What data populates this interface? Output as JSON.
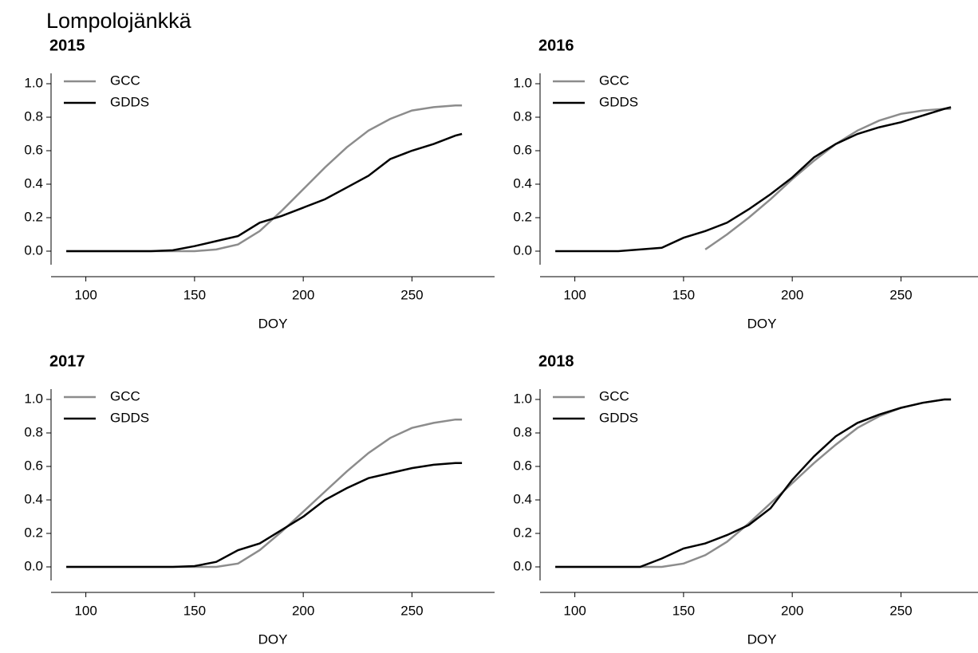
{
  "title": "Lompolojänkkä",
  "chart_data": [
    {
      "type": "line",
      "title": "2015",
      "x_label": "DOY",
      "x": [
        91,
        100,
        110,
        120,
        130,
        140,
        150,
        160,
        170,
        180,
        190,
        200,
        210,
        220,
        230,
        240,
        250,
        260,
        270,
        273
      ],
      "series": [
        {
          "name": "GCC",
          "color": "#8c8c8c",
          "values": [
            0,
            0,
            0,
            0,
            0,
            0,
            0,
            0.01,
            0.04,
            0.12,
            0.24,
            0.37,
            0.5,
            0.62,
            0.72,
            0.79,
            0.84,
            0.86,
            0.87,
            0.87
          ]
        },
        {
          "name": "GDDS",
          "color": "#000000",
          "values": [
            0,
            0,
            0,
            0,
            0,
            0.005,
            0.03,
            0.06,
            0.09,
            0.17,
            0.21,
            0.26,
            0.31,
            0.38,
            0.45,
            0.55,
            0.6,
            0.64,
            0.69,
            0.7
          ]
        }
      ],
      "xlim": [
        84,
        288
      ],
      "xticks": [
        100,
        150,
        200,
        250
      ],
      "ylim": [
        -0.1,
        1.1
      ],
      "yticks": [
        {
          "value": 0,
          "label": "0.0"
        },
        0.2,
        0.4,
        0.6,
        0.8,
        {
          "value": 1,
          "label": "1.0"
        }
      ],
      "grid": false,
      "legend": "upper left"
    },
    {
      "type": "line",
      "title": "2016",
      "x_label": "DOY",
      "x": [
        91,
        100,
        110,
        120,
        130,
        140,
        150,
        160,
        170,
        180,
        190,
        200,
        210,
        220,
        230,
        240,
        250,
        260,
        270,
        273
      ],
      "series": [
        {
          "name": "GCC",
          "color": "#8c8c8c",
          "values": [
            null,
            null,
            null,
            null,
            null,
            null,
            null,
            0.01,
            0.1,
            0.2,
            0.31,
            0.43,
            0.54,
            0.64,
            0.72,
            0.78,
            0.82,
            0.84,
            0.85,
            0.85
          ]
        },
        {
          "name": "GDDS",
          "color": "#000000",
          "values": [
            0,
            0,
            0,
            0,
            0.01,
            0.02,
            0.08,
            0.12,
            0.17,
            0.25,
            0.34,
            0.44,
            0.56,
            0.64,
            0.7,
            0.74,
            0.77,
            0.81,
            0.85,
            0.86
          ]
        }
      ],
      "xlim": [
        84,
        288
      ],
      "xticks": [
        100,
        150,
        200,
        250
      ],
      "ylim": [
        -0.1,
        1.1
      ],
      "yticks": [
        {
          "value": 0,
          "label": "0.0"
        },
        0.2,
        0.4,
        0.6,
        0.8,
        {
          "value": 1,
          "label": "1.0"
        }
      ],
      "grid": false,
      "legend": "upper left"
    },
    {
      "type": "line",
      "title": "2017",
      "x_label": "DOY",
      "x": [
        91,
        100,
        110,
        120,
        130,
        140,
        150,
        160,
        170,
        180,
        190,
        200,
        210,
        220,
        230,
        240,
        250,
        260,
        270,
        273
      ],
      "series": [
        {
          "name": "GCC",
          "color": "#8c8c8c",
          "values": [
            0,
            0,
            0,
            0,
            0,
            0,
            0,
            0,
            0.02,
            0.1,
            0.21,
            0.33,
            0.45,
            0.57,
            0.68,
            0.77,
            0.83,
            0.86,
            0.88,
            0.88
          ]
        },
        {
          "name": "GDDS",
          "color": "#000000",
          "values": [
            0,
            0,
            0,
            0,
            0,
            0,
            0.005,
            0.03,
            0.1,
            0.14,
            0.22,
            0.3,
            0.4,
            0.47,
            0.53,
            0.56,
            0.59,
            0.61,
            0.62,
            0.62
          ]
        }
      ],
      "xlim": [
        84,
        288
      ],
      "xticks": [
        100,
        150,
        200,
        250
      ],
      "ylim": [
        -0.1,
        1.1
      ],
      "yticks": [
        {
          "value": 0,
          "label": "0.0"
        },
        0.2,
        0.4,
        0.6,
        0.8,
        {
          "value": 1,
          "label": "1.0"
        }
      ],
      "grid": false,
      "legend": "upper left"
    },
    {
      "type": "line",
      "title": "2018",
      "x_label": "DOY",
      "x": [
        91,
        100,
        110,
        120,
        130,
        140,
        150,
        160,
        170,
        180,
        190,
        200,
        210,
        220,
        230,
        240,
        250,
        260,
        270,
        273
      ],
      "series": [
        {
          "name": "GCC",
          "color": "#8c8c8c",
          "values": [
            0,
            0,
            0,
            0,
            0,
            0,
            0.02,
            0.07,
            0.15,
            0.26,
            0.38,
            0.5,
            0.62,
            0.73,
            0.83,
            0.9,
            0.95,
            0.98,
            1,
            1
          ]
        },
        {
          "name": "GDDS",
          "color": "#000000",
          "values": [
            0,
            0,
            0,
            0,
            0,
            0.05,
            0.11,
            0.14,
            0.19,
            0.25,
            0.35,
            0.52,
            0.66,
            0.78,
            0.86,
            0.91,
            0.95,
            0.98,
            1,
            1
          ]
        }
      ],
      "xlim": [
        84,
        288
      ],
      "xticks": [
        100,
        150,
        200,
        250
      ],
      "ylim": [
        -0.1,
        1.1
      ],
      "yticks": [
        {
          "value": 0,
          "label": "0.0"
        },
        0.2,
        0.4,
        0.6,
        0.8,
        {
          "value": 1,
          "label": "1.0"
        }
      ],
      "grid": false,
      "legend": "upper left"
    }
  ]
}
